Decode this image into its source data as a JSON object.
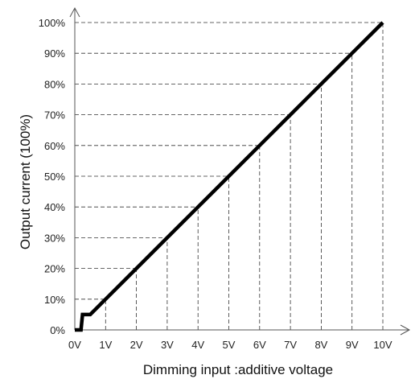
{
  "chart_data": {
    "type": "line",
    "xlabel": "Dimming  input :additive  voltage",
    "ylabel": "Output  current (100%)",
    "x_tick_labels": [
      "0V",
      "1V",
      "2V",
      "3V",
      "4V",
      "5V",
      "6V",
      "7V",
      "8V",
      "9V",
      "10V"
    ],
    "y_tick_labels": [
      "0%",
      "10%",
      "20%",
      "30%",
      "40%",
      "50%",
      "60%",
      "70%",
      "80%",
      "90%",
      "100%"
    ],
    "xlim": [
      0,
      10
    ],
    "ylim": [
      0,
      100
    ],
    "grid": "dashed guide lines to each tick",
    "series": [
      {
        "x": [
          0,
          0.2,
          0.25,
          0.5,
          1,
          2,
          3,
          4,
          5,
          6,
          7,
          8,
          9,
          10
        ],
        "y": [
          0,
          0,
          5,
          5,
          10,
          20,
          30,
          40,
          50,
          60,
          70,
          80,
          90,
          100
        ]
      }
    ]
  }
}
